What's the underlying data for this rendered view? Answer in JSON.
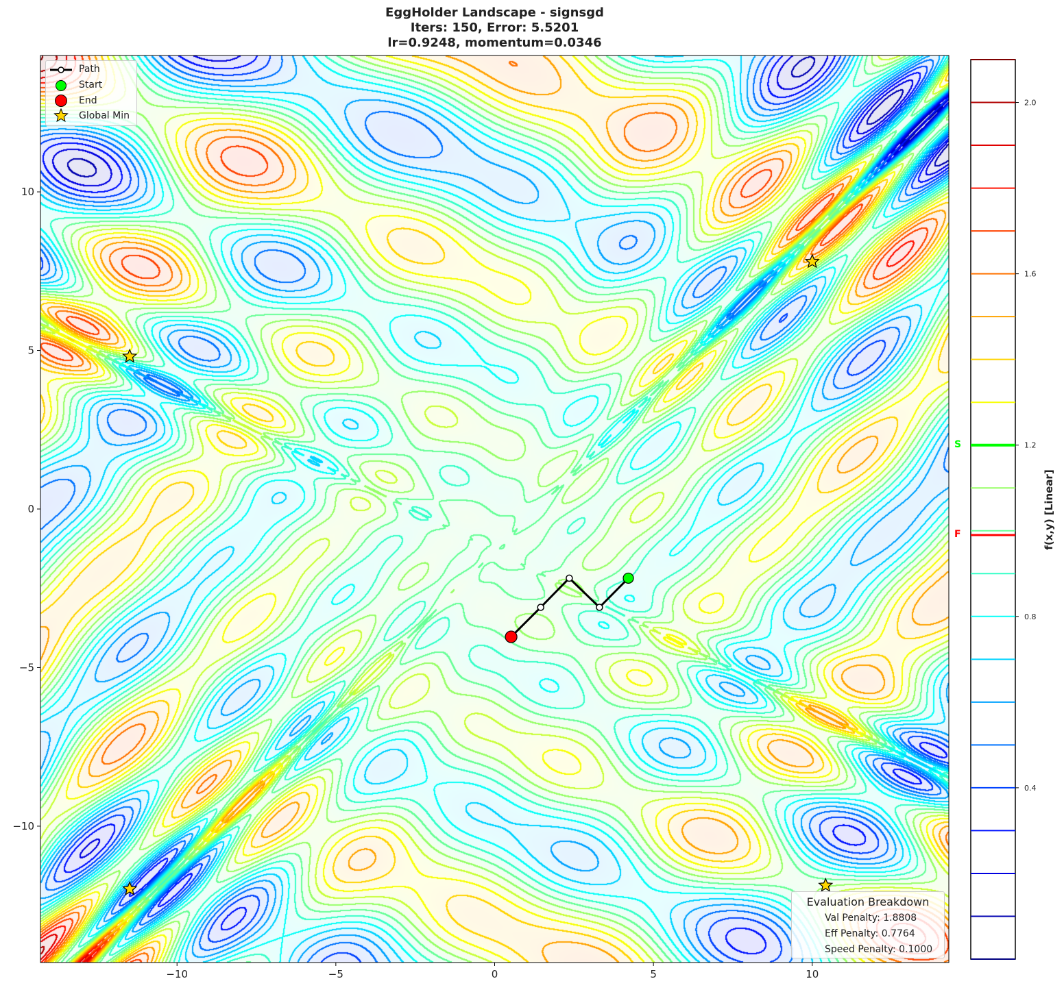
{
  "title": {
    "line1": "EggHolder Landscape - signsgd",
    "line2": "Iters: 150, Error: 5.5201",
    "line3": "lr=0.9248, momentum=0.0346"
  },
  "legend": {
    "path": "Path",
    "start": "Start",
    "end": "End",
    "global_min": "Global Min"
  },
  "evaluation": {
    "heading": "Evaluation Breakdown",
    "val_penalty": "Val Penalty: 1.8808",
    "eff_penalty": "Eff Penalty: 0.7764",
    "speed_penalty": "Speed Penalty: 0.1000"
  },
  "colorbar": {
    "label": "f(x,y) [Linear]",
    "start_marker": "S",
    "final_marker": "F",
    "start_color": "#00ff00",
    "final_color": "#ff0000"
  },
  "chart_data": {
    "type": "contour",
    "title": "EggHolder Landscape - signsgd",
    "xlim": [
      -14.3,
      14.3
    ],
    "ylim": [
      -14.3,
      14.3
    ],
    "xticks": [
      -10,
      -5,
      0,
      5,
      10
    ],
    "yticks": [
      -10,
      -5,
      0,
      5,
      10
    ],
    "colormap": "jet",
    "levels_range": [
      0,
      2.1
    ],
    "level_step": 0.1,
    "colorbar_ticks": [
      0.4,
      0.8,
      1.2,
      1.6,
      2.0
    ],
    "start_value": 1.2,
    "final_value": 0.99,
    "path": {
      "x": [
        4.21,
        3.3,
        2.35,
        1.45,
        0.52
      ],
      "y": [
        -2.18,
        -3.1,
        -2.18,
        -3.1,
        -4.03
      ]
    },
    "start": {
      "x": 4.21,
      "y": -2.18,
      "color": "#00ff00"
    },
    "end": {
      "x": 0.52,
      "y": -4.03,
      "color": "#ff0000"
    },
    "global_minima": [
      {
        "x": -11.49,
        "y": 4.81
      },
      {
        "x": 10.0,
        "y": 7.8
      },
      {
        "x": -11.49,
        "y": -11.98
      },
      {
        "x": 10.42,
        "y": -11.87
      }
    ],
    "legend_position": "upper-left",
    "grid": false
  }
}
